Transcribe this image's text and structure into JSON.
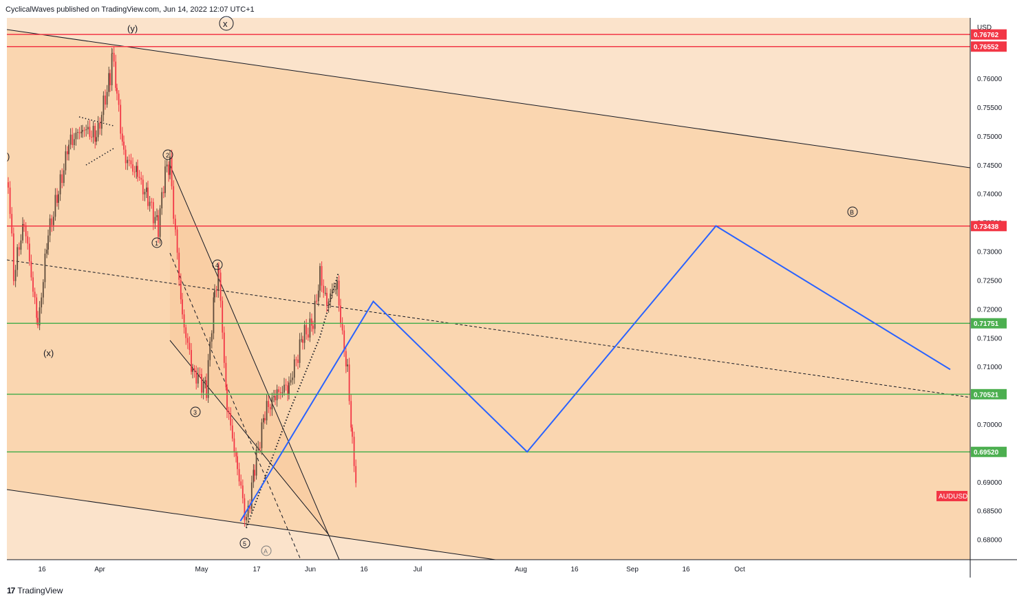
{
  "header": {
    "published_line": "CyclicalWaves published on TradingView.com, Jun 14, 2022 12:07 UTC+1"
  },
  "footer": {
    "logo_mark": "17",
    "brand": "TradingView"
  },
  "colors": {
    "background_panel": "#fbe3cb",
    "channel_fill": "#fad6b0",
    "resistance_red": "#f23645",
    "support_green": "#4caf50",
    "projection_blue": "#2962ff",
    "candle_up": "#5d4a3a",
    "candle_down": "#f23645"
  },
  "chart_data": {
    "type": "line",
    "symbol": "AUDUSD",
    "currency": "USD",
    "ylim": [
      0.6765,
      0.7705
    ],
    "y_ticks": [
      "0.76000",
      "0.75500",
      "0.75000",
      "0.74500",
      "0.74000",
      "0.73500",
      "0.73000",
      "0.72500",
      "0.72000",
      "0.71500",
      "0.71000",
      "0.70500",
      "0.70000",
      "0.69500",
      "0.69000",
      "0.68500",
      "0.68000"
    ],
    "x_ticks": [
      "16",
      "Apr",
      "May",
      "17",
      "Jun",
      "16",
      "Jul",
      "Aug",
      "16",
      "Sep",
      "16",
      "Oct"
    ],
    "price_levels": [
      {
        "value": 0.76762,
        "label": "0.76762",
        "color": "#f23645"
      },
      {
        "value": 0.76552,
        "label": "0.76552",
        "color": "#f23645"
      },
      {
        "value": 0.73438,
        "label": "0.73438",
        "color": "#f23645"
      },
      {
        "value": 0.71751,
        "label": "0.71751",
        "color": "#4caf50"
      },
      {
        "value": 0.70521,
        "label": "0.70521",
        "color": "#4caf50"
      },
      {
        "value": 0.6952,
        "label": "0.69520",
        "color": "#4caf50"
      }
    ],
    "last_price_label": "AUDUSD",
    "projection_path": [
      {
        "date": "2022-05-12",
        "price": 0.6832
      },
      {
        "date": "2022-06-19",
        "price": 0.7213
      },
      {
        "date": "2022-08-02",
        "price": 0.6952
      },
      {
        "date": "2022-09-25",
        "price": 0.7344
      },
      {
        "date": "2022-12-01",
        "price": 0.7095
      }
    ],
    "wave_labels": [
      "(y)",
      "x",
      "(x)",
      ")",
      "1",
      "2",
      "3",
      "4",
      "5",
      "A",
      "B"
    ]
  }
}
